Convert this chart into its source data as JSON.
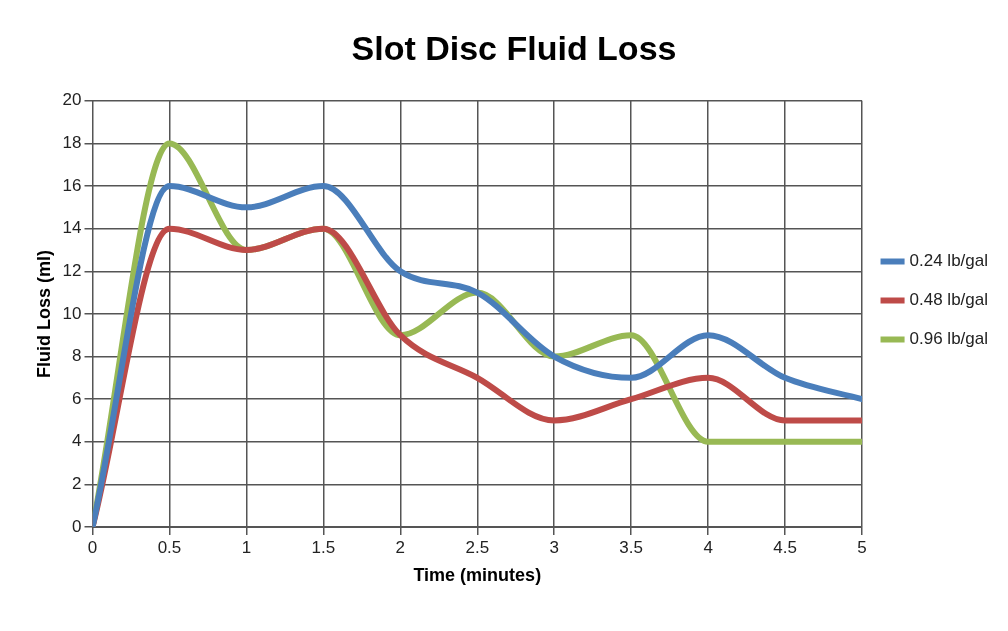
{
  "chart_data": {
    "type": "line",
    "title": "Slot Disc Fluid Loss",
    "xlabel": "Time (minutes)",
    "ylabel": "Fluid Loss (ml)",
    "x": [
      0,
      0.5,
      1,
      1.5,
      2,
      2.5,
      3,
      3.5,
      4,
      4.5,
      5
    ],
    "series": [
      {
        "name": "0.24 lb/gal",
        "color": "#4a7ebb",
        "values": [
          0,
          16,
          15,
          16,
          12,
          11,
          8,
          7,
          9,
          7,
          6
        ]
      },
      {
        "name": "0.48 lb/gal",
        "color": "#be4b48",
        "values": [
          0,
          14,
          13,
          14,
          9,
          7,
          5,
          6,
          7,
          5,
          5
        ]
      },
      {
        "name": "0.96 lb/gal",
        "color": "#98b954",
        "values": [
          0,
          18,
          13,
          14,
          9,
          11,
          8,
          9,
          4,
          4,
          4
        ]
      }
    ],
    "xlim": [
      0,
      5
    ],
    "xticks": [
      0,
      0.5,
      1,
      1.5,
      2,
      2.5,
      3,
      3.5,
      4,
      4.5,
      5
    ],
    "ylim": [
      0,
      20
    ],
    "yticks": [
      0,
      2,
      4,
      6,
      8,
      10,
      12,
      14,
      16,
      18,
      20
    ],
    "grid": true,
    "legend": "right",
    "marker": "none"
  }
}
